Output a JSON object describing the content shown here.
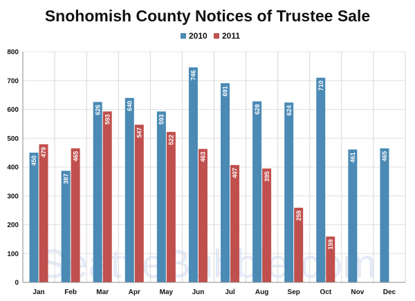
{
  "chart_data": {
    "type": "bar",
    "title": "Snohomish County Notices of Trustee Sale",
    "categories": [
      "Jan",
      "Feb",
      "Mar",
      "Apr",
      "May",
      "Jun",
      "Jul",
      "Aug",
      "Sep",
      "Oct",
      "Nov",
      "Dec"
    ],
    "series": [
      {
        "name": "2010",
        "color": "#4a8ab5",
        "values": [
          450,
          387,
          626,
          640,
          593,
          746,
          691,
          628,
          624,
          710,
          461,
          465
        ]
      },
      {
        "name": "2011",
        "color": "#c0504d",
        "values": [
          479,
          465,
          593,
          547,
          522,
          463,
          407,
          395,
          259,
          159,
          null,
          null
        ]
      }
    ],
    "ylim": [
      0,
      800
    ],
    "yticks": [
      0,
      100,
      200,
      300,
      400,
      500,
      600,
      700,
      800
    ],
    "xlabel": "",
    "ylabel": "",
    "legend": "top-center",
    "grid": true,
    "data_labels": true,
    "watermark": "SeattleBubble.com"
  }
}
